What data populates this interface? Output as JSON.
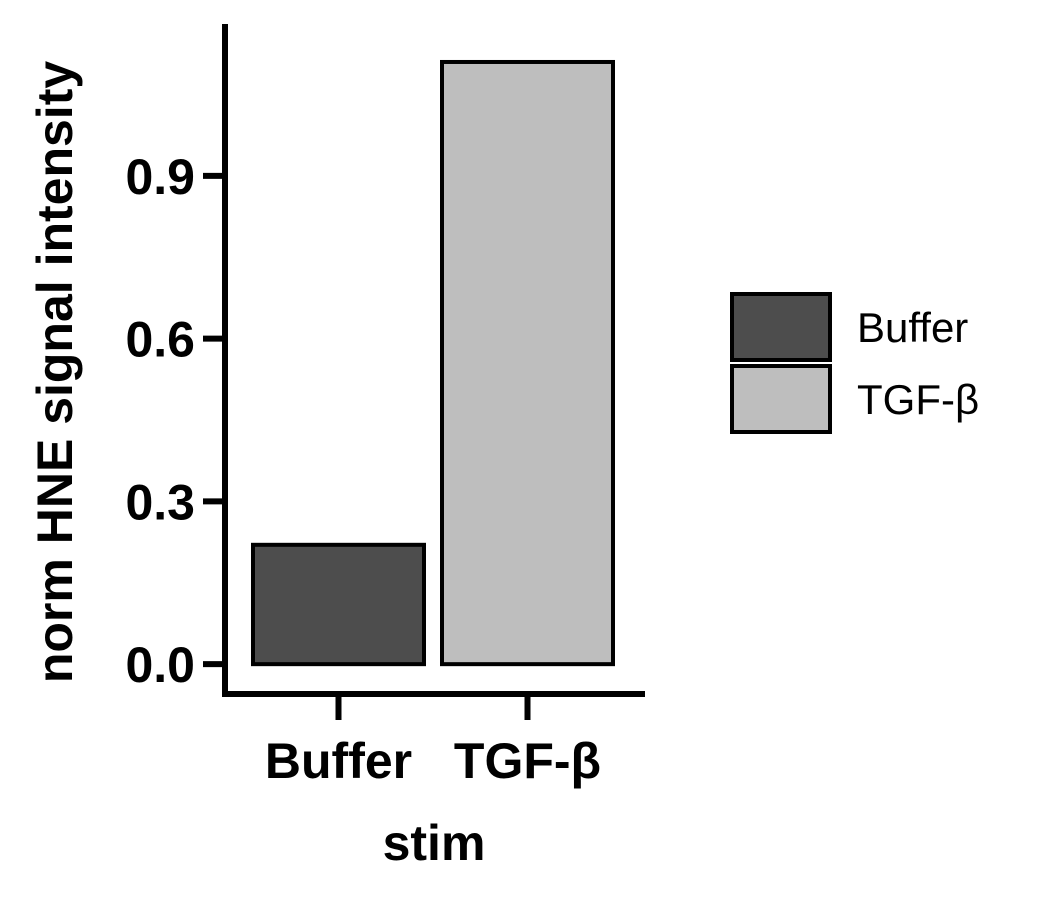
{
  "chart_data": {
    "type": "bar",
    "categories": [
      "Buffer",
      "TGF-β"
    ],
    "values": [
      0.22,
      1.11
    ],
    "ylim": [
      -0.055,
      1.18
    ],
    "yticks": [
      0.0,
      0.3,
      0.6,
      0.9
    ],
    "ytick_labels": [
      "0.0",
      "0.3",
      "0.6",
      "0.9"
    ],
    "xlabel": "stim",
    "ylabel": "norm HNE signal intensity",
    "title": "",
    "grid": false,
    "legend": {
      "position": "right",
      "entries": [
        "Buffer",
        "TGF-β"
      ]
    },
    "colors": [
      "#4d4d4d",
      "#bebebe"
    ],
    "edge_color": "#000000"
  }
}
